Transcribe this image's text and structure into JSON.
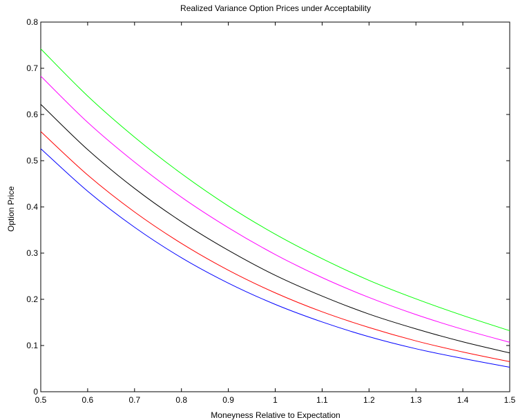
{
  "chart_data": {
    "type": "line",
    "title": "Realized Variance Option Prices under Acceptability",
    "xlabel": "Moneyness Relative to Expectation",
    "ylabel": "Option Price",
    "xlim": [
      0.5,
      1.5
    ],
    "ylim": [
      0,
      0.8
    ],
    "xticks": [
      "0.5",
      "0.6",
      "0.7",
      "0.8",
      "0.9",
      "1",
      "1.1",
      "1.2",
      "1.3",
      "1.4",
      "1.5"
    ],
    "yticks": [
      "0",
      "0.1",
      "0.2",
      "0.3",
      "0.4",
      "0.5",
      "0.6",
      "0.7",
      "0.8"
    ],
    "grid": false,
    "legend": "none",
    "x": [
      0.5,
      0.6,
      0.7,
      0.8,
      0.9,
      1.0,
      1.1,
      1.2,
      1.3,
      1.4,
      1.5
    ],
    "series": [
      {
        "color": "#00ff00",
        "values": [
          0.742,
          0.64,
          0.551,
          0.472,
          0.402,
          0.341,
          0.288,
          0.241,
          0.201,
          0.165,
          0.132
        ]
      },
      {
        "color": "#ff00ff",
        "values": [
          0.683,
          0.583,
          0.497,
          0.421,
          0.355,
          0.297,
          0.247,
          0.204,
          0.167,
          0.135,
          0.107
        ]
      },
      {
        "color": "#000000",
        "values": [
          0.622,
          0.524,
          0.44,
          0.368,
          0.306,
          0.252,
          0.207,
          0.168,
          0.136,
          0.108,
          0.084
        ]
      },
      {
        "color": "#ff0000",
        "values": [
          0.563,
          0.469,
          0.389,
          0.321,
          0.263,
          0.214,
          0.173,
          0.139,
          0.11,
          0.086,
          0.065
        ]
      },
      {
        "color": "#0000ff",
        "values": [
          0.526,
          0.434,
          0.356,
          0.29,
          0.235,
          0.189,
          0.151,
          0.119,
          0.093,
          0.072,
          0.053
        ]
      }
    ]
  }
}
